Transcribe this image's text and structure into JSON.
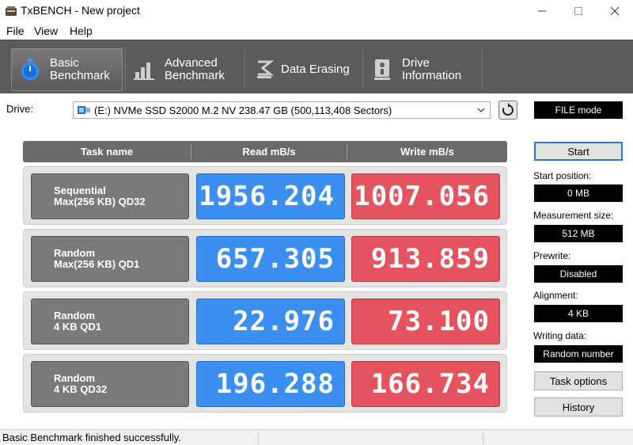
{
  "window": {
    "title": "TxBENCH - New project"
  },
  "menu": {
    "items": [
      "File",
      "View",
      "Help"
    ]
  },
  "toolbar": {
    "tabs": [
      {
        "line1": "Basic",
        "line2": "Benchmark",
        "icon": "stopwatch-icon"
      },
      {
        "line1": "Advanced",
        "line2": "Benchmark",
        "icon": "bar-chart-icon"
      },
      {
        "line1": "Data Erasing",
        "line2": "",
        "icon": "eraser-icon"
      },
      {
        "line1": "Drive",
        "line2": "Information",
        "icon": "info-icon"
      }
    ],
    "active": "Basic Benchmark"
  },
  "drive": {
    "label": "Drive:",
    "selected": "(E:) NVMe SSD S2000 M.2 NV  238.47 GB (500,113,408 Sectors)"
  },
  "results": {
    "headers": {
      "task": "Task name",
      "read": "Read mB/s",
      "write": "Write mB/s"
    },
    "rows": [
      {
        "line1": "Sequential",
        "line2": "Max(256 KB) QD32",
        "read": "1956.204",
        "write": "1007.056"
      },
      {
        "line1": "Random",
        "line2": "Max(256 KB) QD1",
        "read": "657.305",
        "write": "913.859"
      },
      {
        "line1": "Random",
        "line2": "4 KB QD1",
        "read": "22.976",
        "write": "73.100"
      },
      {
        "line1": "Random",
        "line2": "4 KB QD32",
        "read": "196.288",
        "write": "166.734"
      }
    ]
  },
  "panel": {
    "mode": "FILE mode",
    "start": "Start",
    "start_position_label": "Start position:",
    "start_position": "0 MB",
    "measurement_size_label": "Measurement size:",
    "measurement_size": "512 MB",
    "prewrite_label": "Prewrite:",
    "prewrite": "Disabled",
    "alignment_label": "Alignment:",
    "alignment": "4 KB",
    "writing_data_label": "Writing data:",
    "writing_data": "Random number",
    "task_options": "Task options",
    "history": "History"
  },
  "status": {
    "text": "Basic Benchmark finished successfully."
  },
  "colors": {
    "read": "#3b8ff0",
    "write": "#e5545e",
    "task": "#7a7a7a",
    "toolbar": "#5b5b5b"
  }
}
